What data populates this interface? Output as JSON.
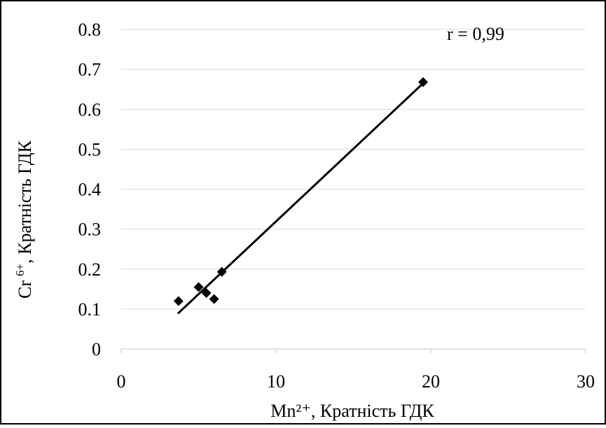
{
  "chart_data": {
    "type": "scatter",
    "title": "",
    "xlabel": "Mn²⁺, Кратність ГДК",
    "ylabel_main": "Cr",
    "ylabel_sup": "6+",
    "ylabel_rest": ", Кратність ГДК",
    "xlim": [
      0,
      30
    ],
    "ylim": [
      0,
      0.8
    ],
    "xticks": [
      0,
      10,
      20,
      30
    ],
    "xtick_labels": [
      "0",
      "10",
      "20",
      "30"
    ],
    "yticks": [
      0,
      0.1,
      0.2,
      0.3,
      0.4,
      0.5,
      0.6,
      0.7,
      0.8
    ],
    "ytick_labels": [
      "0",
      "0.1",
      "0.2",
      "0.3",
      "0.4",
      "0.5",
      "0.6",
      "0.7",
      "0.8"
    ],
    "grid": "horizontal",
    "legend": "none",
    "points": [
      {
        "x": 3.7,
        "y": 0.12
      },
      {
        "x": 5.0,
        "y": 0.155
      },
      {
        "x": 5.5,
        "y": 0.14
      },
      {
        "x": 6.0,
        "y": 0.125
      },
      {
        "x": 6.5,
        "y": 0.193
      },
      {
        "x": 19.5,
        "y": 0.668
      }
    ],
    "trendline": {
      "type": "linear",
      "x_start": 3.7,
      "y_start": 0.09,
      "x_end": 19.5,
      "y_end": 0.665
    },
    "annotation": "r = 0,99",
    "colors": {
      "marker": "#000000",
      "line": "#000000",
      "grid": "#d9d9d9",
      "border": "#000000"
    }
  }
}
